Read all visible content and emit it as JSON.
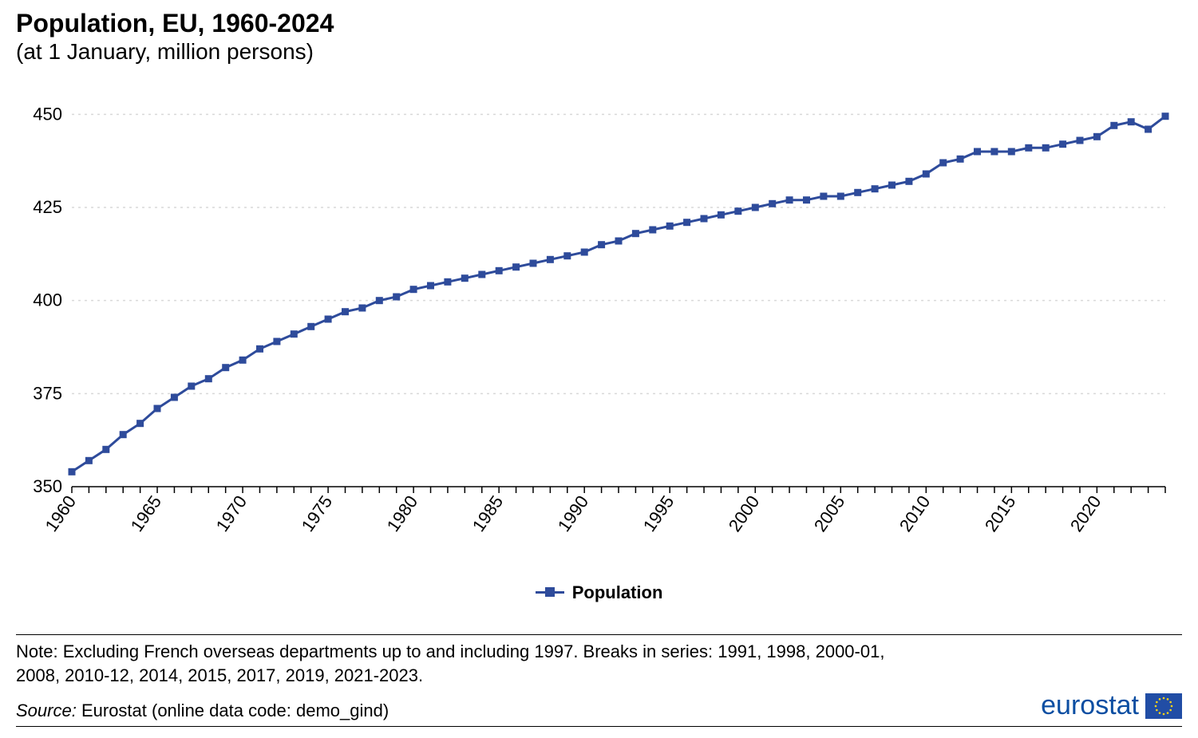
{
  "title": {
    "main": "Population, EU, 1960-2024",
    "sub": "(at 1 January, million persons)",
    "main_fontsize": 32,
    "sub_fontsize": 28,
    "color": "#000000",
    "weight_main": 700,
    "weight_sub": 400
  },
  "chart": {
    "type": "line",
    "background_color": "#ffffff",
    "grid_color": "#d9d9d9",
    "grid_dash": "3 5",
    "axis_color": "#000000",
    "series_color": "#2e4b9b",
    "marker": "square",
    "marker_size": 9,
    "line_width": 3,
    "xlim": [
      1960,
      2024
    ],
    "ylim": [
      350,
      455
    ],
    "ytick_step": 25,
    "yticks": [
      350,
      375,
      400,
      425,
      450
    ],
    "xtick_step": 5,
    "xticks": [
      1960,
      1965,
      1970,
      1975,
      1980,
      1985,
      1990,
      1995,
      2000,
      2005,
      2010,
      2015,
      2020
    ],
    "xtick_rotation": -55,
    "tick_fontsize": 22,
    "years": [
      1960,
      1961,
      1962,
      1963,
      1964,
      1965,
      1966,
      1967,
      1968,
      1969,
      1970,
      1971,
      1972,
      1973,
      1974,
      1975,
      1976,
      1977,
      1978,
      1979,
      1980,
      1981,
      1982,
      1983,
      1984,
      1985,
      1986,
      1987,
      1988,
      1989,
      1990,
      1991,
      1992,
      1993,
      1994,
      1995,
      1996,
      1997,
      1998,
      1999,
      2000,
      2001,
      2002,
      2003,
      2004,
      2005,
      2006,
      2007,
      2008,
      2009,
      2010,
      2011,
      2012,
      2013,
      2014,
      2015,
      2016,
      2017,
      2018,
      2019,
      2020,
      2021,
      2022,
      2023,
      2024
    ],
    "values": [
      354,
      357,
      360,
      364,
      367,
      371,
      374,
      377,
      379,
      382,
      384,
      387,
      389,
      391,
      393,
      395,
      397,
      398,
      400,
      401,
      403,
      404,
      405,
      406,
      407,
      408,
      409,
      410,
      411,
      412,
      413,
      415,
      416,
      418,
      419,
      420,
      421,
      422,
      423,
      424,
      425,
      426,
      427,
      427,
      428,
      428,
      429,
      430,
      431,
      432,
      434,
      437,
      438,
      440,
      440,
      440,
      441,
      441,
      442,
      443,
      444,
      447,
      448,
      446,
      449.5
    ]
  },
  "legend": {
    "label": "Population",
    "fontsize": 22,
    "weight": 700
  },
  "footer": {
    "note": "Note: Excluding French overseas departments up to and including 1997. Breaks in series: 1991, 1998, 2000-01, 2008, 2010-12, 2014, 2015, 2017, 2019, 2021-2023.",
    "source_label": "Source:",
    "source_text": "Eurostat (online data code: demo_gind)",
    "fontsize": 22,
    "rule_color": "#000000"
  },
  "logo": {
    "text": "eurostat",
    "text_color": "#0b4ea2",
    "flag_bg": "#214da5",
    "star_color": "#f7d417"
  }
}
